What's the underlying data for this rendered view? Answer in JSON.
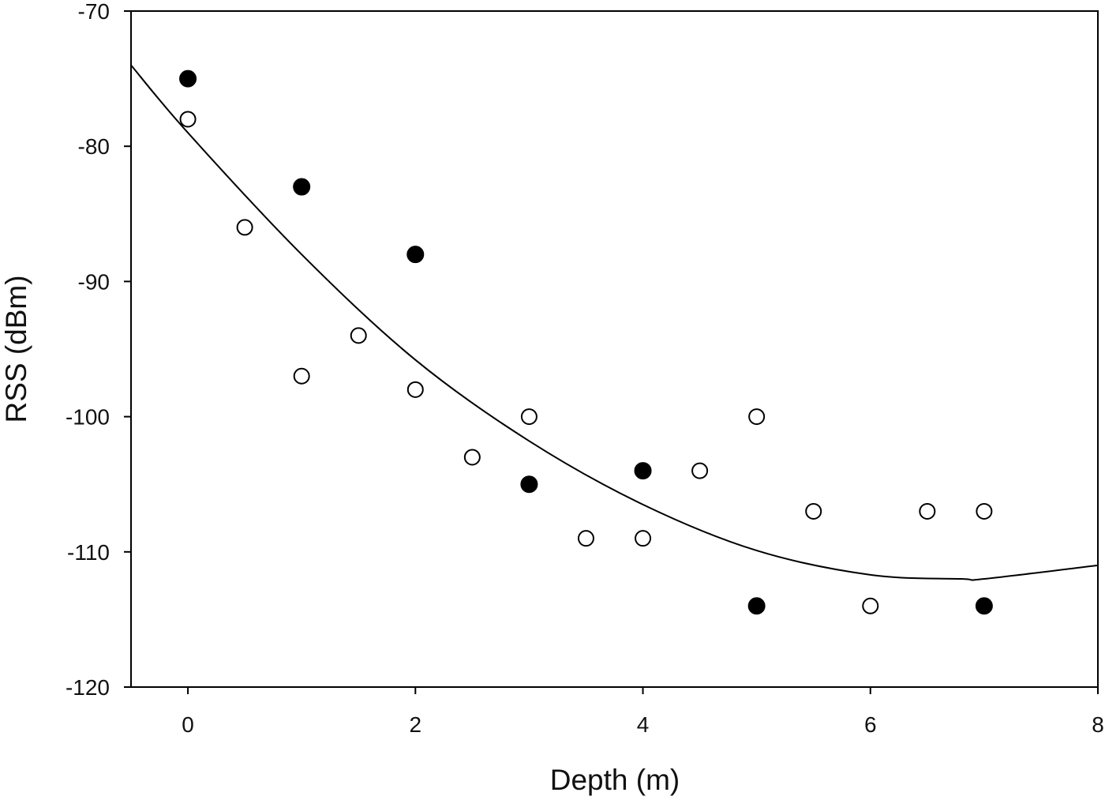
{
  "chart_data": {
    "type": "scatter",
    "xlabel": "Depth (m)",
    "ylabel": "RSS (dBm)",
    "xlim": [
      -0.5,
      8
    ],
    "ylim": [
      -120,
      -70
    ],
    "x_ticks": [
      0,
      2,
      4,
      6,
      8
    ],
    "y_ticks": [
      -70,
      -80,
      -90,
      -100,
      -110,
      -120
    ],
    "grid": false,
    "series": [
      {
        "marker": "filled-circle",
        "color": "#000000",
        "points": [
          [
            0,
            -75
          ],
          [
            1,
            -83
          ],
          [
            2,
            -88
          ],
          [
            3,
            -105
          ],
          [
            4,
            -104
          ],
          [
            5,
            -114
          ],
          [
            7,
            -114
          ]
        ]
      },
      {
        "marker": "open-circle",
        "color": "#000000",
        "points": [
          [
            0,
            -78
          ],
          [
            0.5,
            -86
          ],
          [
            1,
            -97
          ],
          [
            1.5,
            -94
          ],
          [
            2,
            -98
          ],
          [
            2.5,
            -103
          ],
          [
            3,
            -100
          ],
          [
            3.5,
            -109
          ],
          [
            4,
            -109
          ],
          [
            4.5,
            -104
          ],
          [
            5,
            -100
          ],
          [
            5.5,
            -107
          ],
          [
            6,
            -114
          ],
          [
            6.5,
            -107
          ],
          [
            7,
            -107
          ]
        ]
      }
    ],
    "fit_curve": {
      "type": "quadratic",
      "x": [
        -0.5,
        0,
        1,
        2,
        3,
        4,
        5,
        6,
        6.8,
        7,
        8
      ],
      "y": [
        -74.0,
        -79.0,
        -88.0,
        -95.8,
        -101.8,
        -106.5,
        -109.9,
        -111.7,
        -112.0,
        -112.0,
        -111.0
      ]
    }
  }
}
